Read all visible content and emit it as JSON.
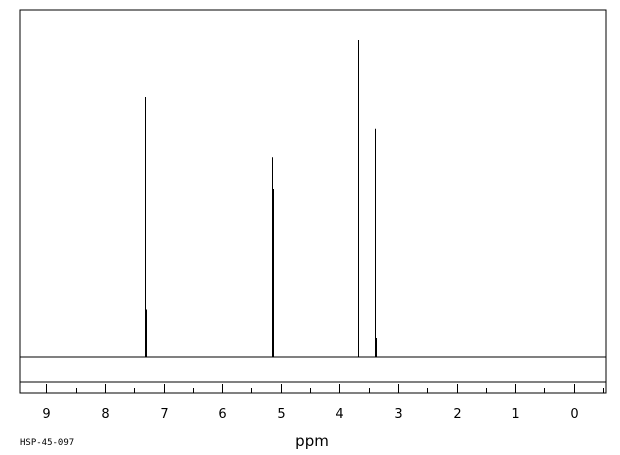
{
  "chart_data": {
    "type": "line",
    "title": "",
    "xlabel": "ppm",
    "ylabel": "",
    "x_reversed": true,
    "xlim": [
      9.45,
      -0.55
    ],
    "ylim": [
      0,
      100
    ],
    "grid": false,
    "legend": "none",
    "ticks": [
      "9",
      "8",
      "7",
      "6",
      "5",
      "4",
      "3",
      "2",
      "1",
      "0"
    ],
    "tick_values": [
      9,
      8,
      7,
      6,
      5,
      4,
      3,
      2,
      1,
      0
    ],
    "peaks": [
      {
        "ppm": 7.32,
        "height": 82
      },
      {
        "ppm": 7.31,
        "height": 22
      },
      {
        "ppm": 7.3,
        "height": 15
      },
      {
        "ppm": 5.15,
        "height": 63
      },
      {
        "ppm": 5.13,
        "height": 53
      },
      {
        "ppm": 3.69,
        "height": 100
      },
      {
        "ppm": 3.68,
        "height": 19
      },
      {
        "ppm": 3.39,
        "height": 72
      },
      {
        "ppm": 3.38,
        "height": 6
      }
    ],
    "colors": {
      "line": "#000000",
      "frame": "#000000"
    }
  },
  "footer": {
    "code": "HSP-45-097"
  }
}
